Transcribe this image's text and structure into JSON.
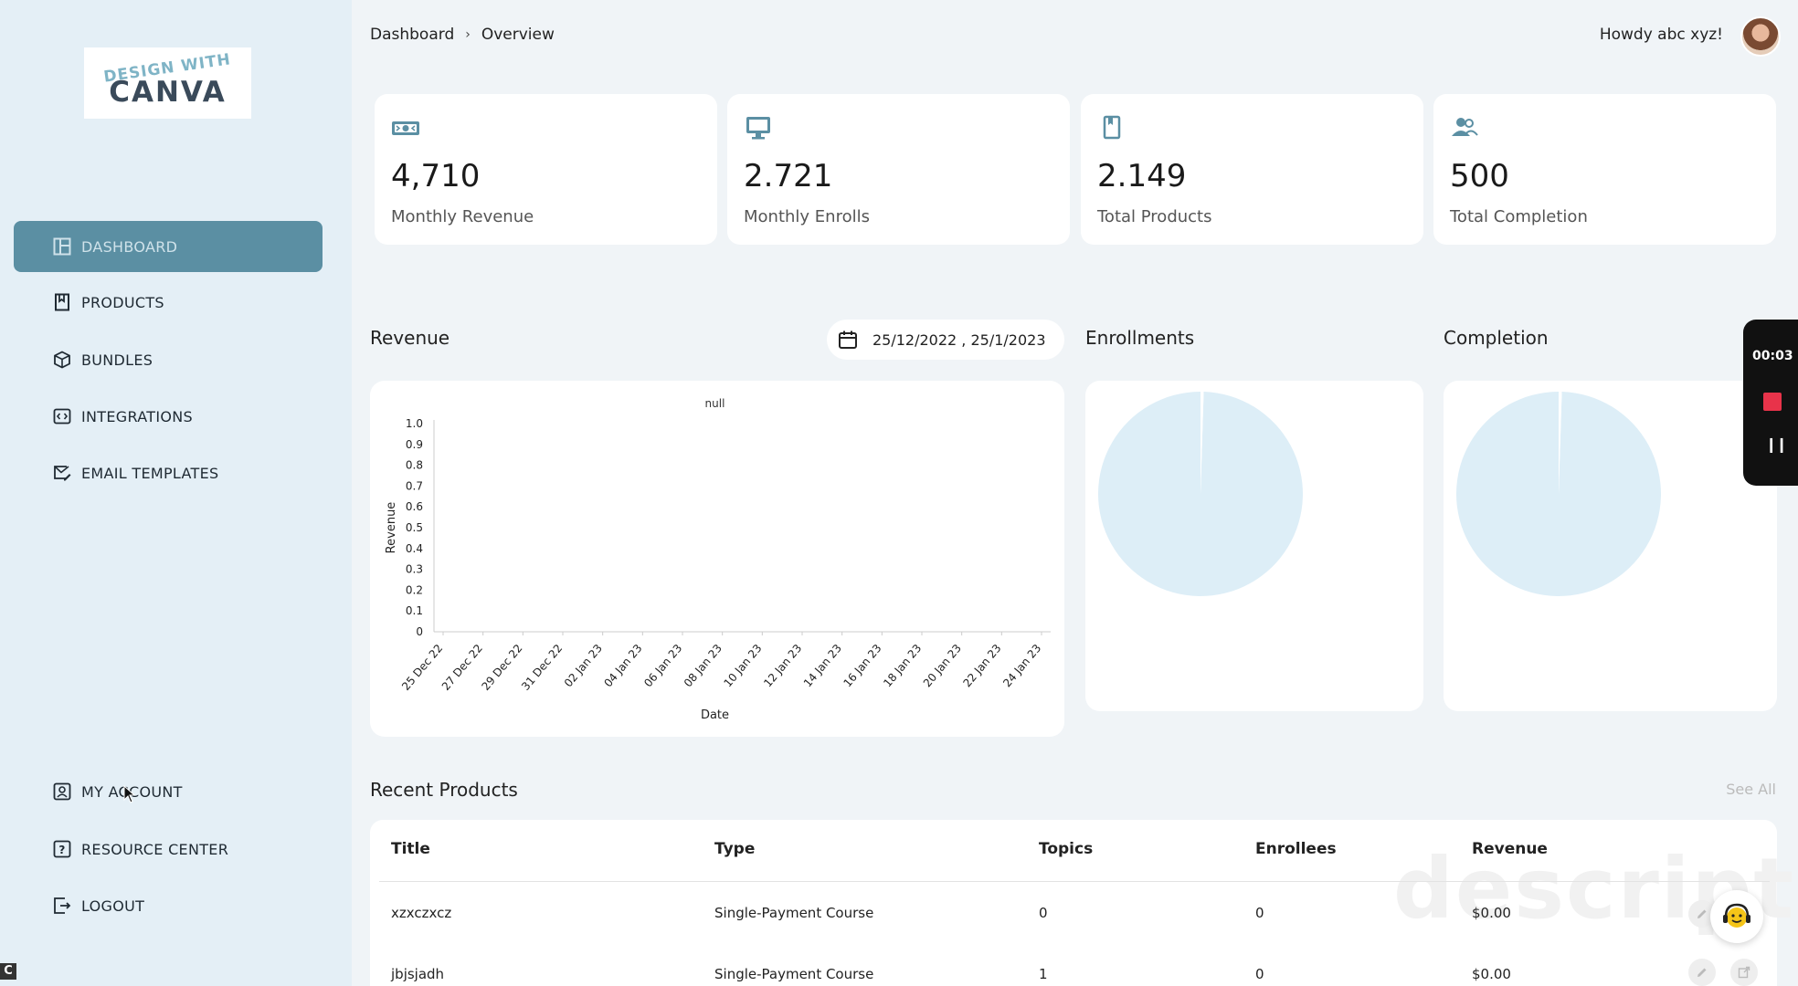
{
  "brand": {
    "logo_line1": "DESIGN WITH",
    "logo_line2": "CANVA"
  },
  "sidebar": {
    "items": [
      {
        "label": "DASHBOARD",
        "icon": "dashboard-icon",
        "active": true
      },
      {
        "label": "PRODUCTS",
        "icon": "bookmark-icon"
      },
      {
        "label": "BUNDLES",
        "icon": "box-icon"
      },
      {
        "label": "INTEGRATIONS",
        "icon": "code-icon"
      },
      {
        "label": "EMAIL TEMPLATES",
        "icon": "mail-edit-icon"
      }
    ],
    "bottom_items": [
      {
        "label": "MY ACCOUNT",
        "icon": "user-icon"
      },
      {
        "label": "RESOURCE CENTER",
        "icon": "help-icon"
      },
      {
        "label": "LOGOUT",
        "icon": "logout-icon"
      }
    ]
  },
  "header": {
    "breadcrumb": [
      "Dashboard",
      "Overview"
    ],
    "greeting": "Howdy abc xyz!"
  },
  "stats": [
    {
      "value": "4,710",
      "label": "Monthly Revenue",
      "icon": "money-icon"
    },
    {
      "value": "2.721",
      "label": "Monthly Enrolls",
      "icon": "monitor-icon"
    },
    {
      "value": "2.149",
      "label": "Total Products",
      "icon": "bookmark-icon"
    },
    {
      "value": "500",
      "label": "Total Completion",
      "icon": "users-icon"
    }
  ],
  "revenue": {
    "title": "Revenue",
    "date_range": "25/12/2022 , 25/1/2023"
  },
  "enrollments": {
    "title": "Enrollments"
  },
  "completion": {
    "title": "Completion"
  },
  "chart_data": [
    {
      "type": "line",
      "title": "null",
      "xlabel": "Date",
      "ylabel": "Revenue",
      "x": [
        "25 Dec 22",
        "27 Dec 22",
        "29 Dec 22",
        "31 Dec 22",
        "02 Jan 23",
        "04 Jan 23",
        "06 Jan 23",
        "08 Jan 23",
        "10 Jan 23",
        "12 Jan 23",
        "14 Jan 23",
        "16 Jan 23",
        "18 Jan 23",
        "20 Jan 23",
        "22 Jan 23",
        "24 Jan 23"
      ],
      "yticks": [
        "0",
        "0.1",
        "0.2",
        "0.3",
        "0.4",
        "0.5",
        "0.6",
        "0.7",
        "0.8",
        "0.9",
        "1.0"
      ],
      "ylim": [
        0,
        1
      ],
      "series": []
    },
    {
      "type": "pie",
      "title": "",
      "slices": [
        {
          "value": 99.5
        },
        {
          "value": 0.5
        }
      ],
      "colors": [
        "#ddeef7",
        "#ffffff"
      ]
    },
    {
      "type": "pie",
      "title": "",
      "slices": [
        {
          "value": 99.5
        },
        {
          "value": 0.5
        }
      ],
      "colors": [
        "#ddeef7",
        "#ffffff"
      ]
    }
  ],
  "recorder": {
    "time": "00:03"
  },
  "recent_products": {
    "title": "Recent Products",
    "see_all": "See All",
    "columns": [
      "Title",
      "Type",
      "Topics",
      "Enrollees",
      "Revenue"
    ],
    "rows": [
      [
        "xzxczxcz",
        "Single-Payment Course",
        "0",
        "0",
        "$0.00"
      ],
      [
        "jbjsjadh",
        "Single-Payment Course",
        "1",
        "0",
        "$0.00"
      ]
    ]
  },
  "watermark": "descript",
  "colors": {
    "accent": "#5b8fa3",
    "sidebar_bg": "#e4eff6",
    "pie_fill": "#ddeef7",
    "record_red": "#e8334a"
  }
}
